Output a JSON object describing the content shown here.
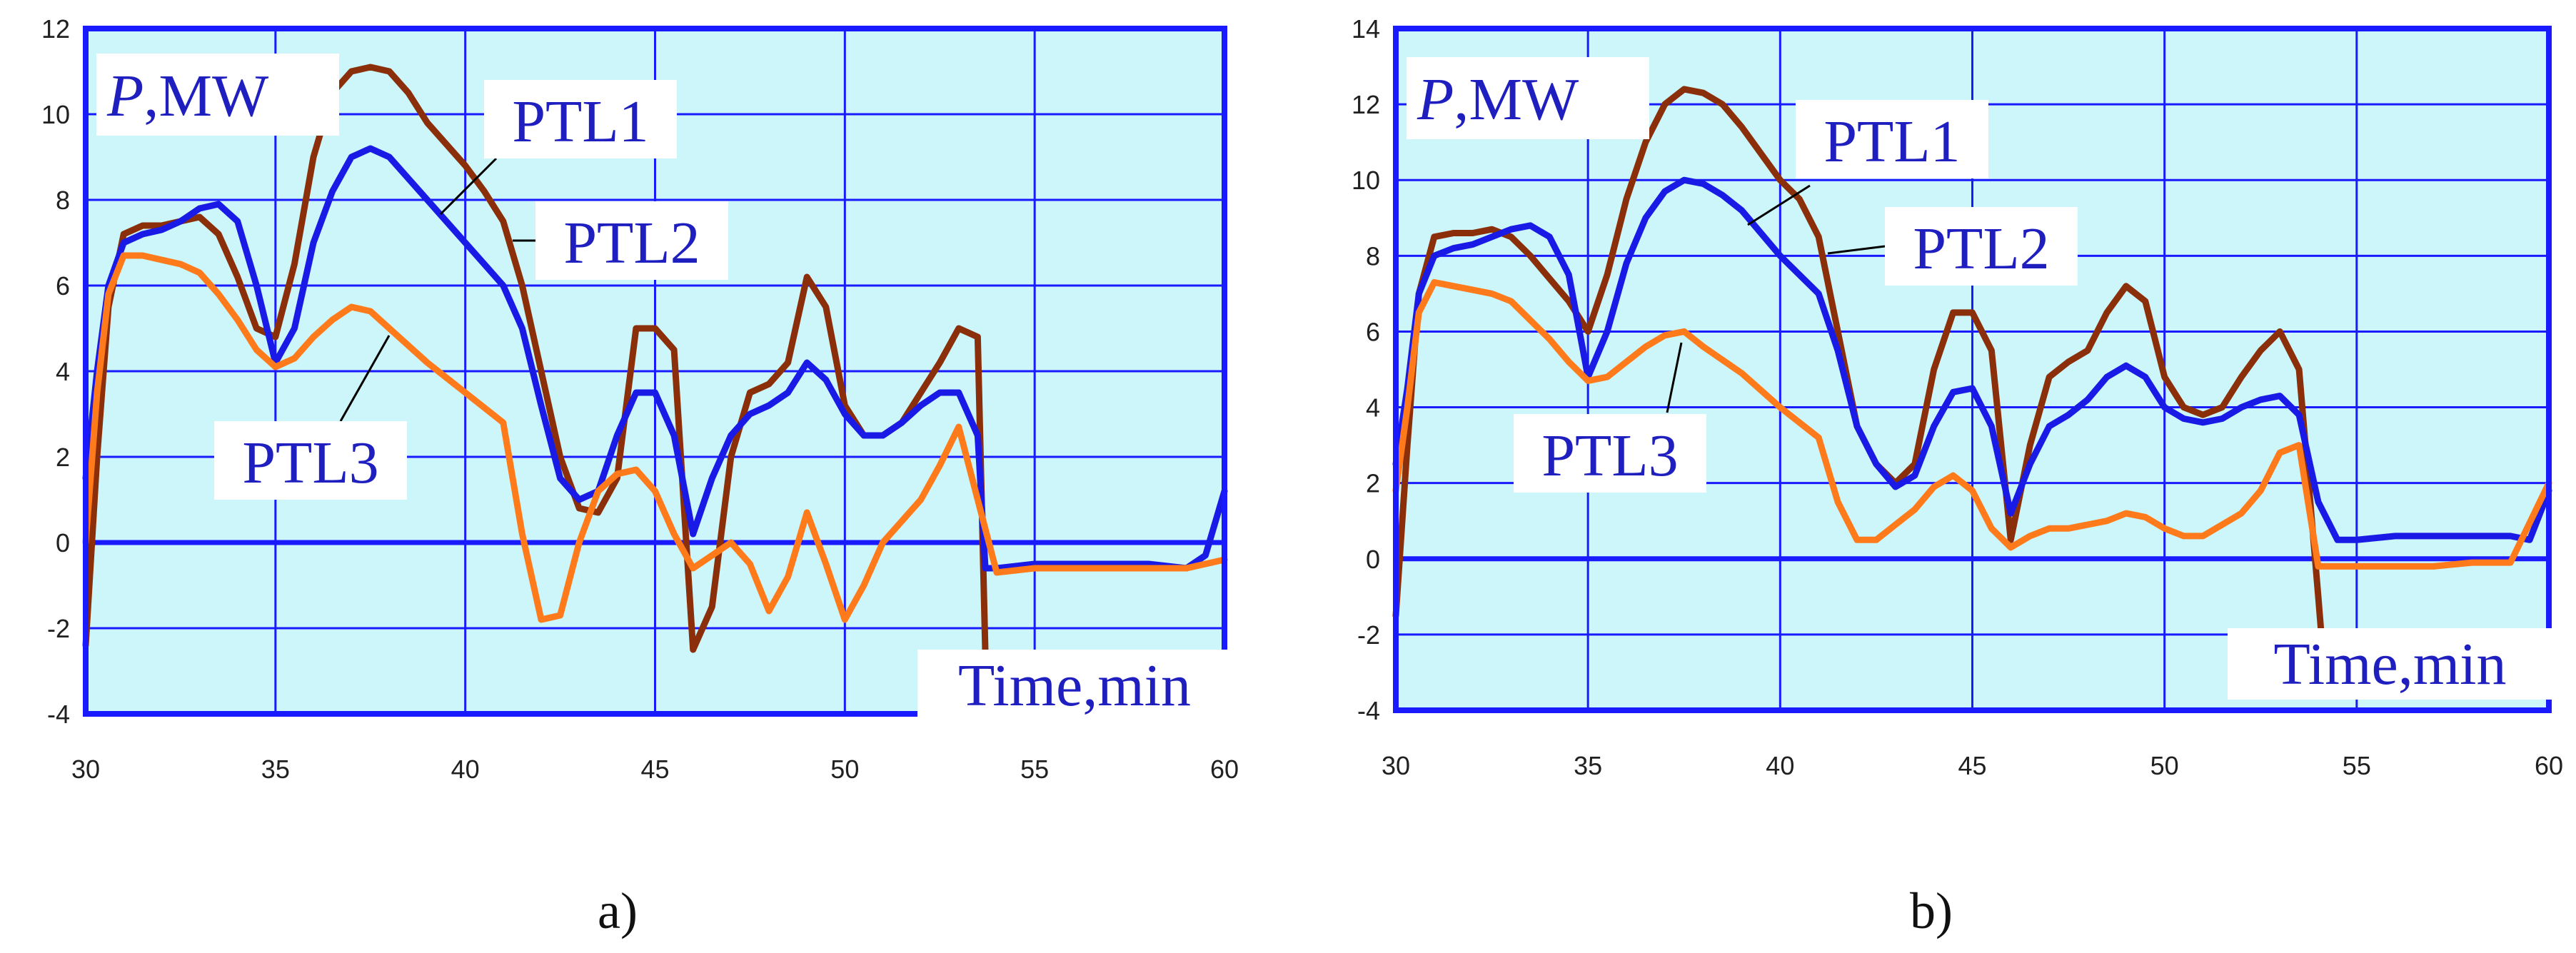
{
  "colors": {
    "plot_background": "#ccf6fa",
    "frame": "#1a1aff",
    "grid": "#1a1aff",
    "label_box": "#ffffff",
    "label_text": "#1f1fbf",
    "PTL1": "#8b2f0a",
    "PTL2": "#1a1ae6",
    "PTL3": "#ff7a1a"
  },
  "chart_data": [
    {
      "type": "line",
      "caption": "a)",
      "xlabel": "Time,min",
      "ylabel_symbol": "P",
      "ylabel_unit": ",MW",
      "xlim": [
        30,
        60
      ],
      "ylim": [
        -4,
        12
      ],
      "xticks": [
        30,
        35,
        40,
        45,
        50,
        55,
        60
      ],
      "yticks": [
        -4,
        -2,
        0,
        2,
        4,
        6,
        8,
        10,
        12
      ],
      "grid": true,
      "series": [
        {
          "name": "PTL1",
          "color": "#8b2f0a",
          "x": [
            30,
            30.3,
            30.6,
            31,
            31.5,
            32,
            33,
            33.5,
            34,
            34.5,
            35,
            35.5,
            36,
            36.5,
            37,
            37.5,
            38,
            38.5,
            39,
            40,
            40.5,
            41,
            41.5,
            42,
            42.5,
            43,
            43.5,
            44,
            44.5,
            45,
            45.5,
            46,
            46.5,
            47,
            47.5,
            48,
            48.5,
            49,
            49.5,
            50,
            50.5,
            51,
            51.5,
            52,
            52.5,
            53,
            53.5,
            53.7
          ],
          "y": [
            -2.4,
            2,
            5.5,
            7.2,
            7.4,
            7.4,
            7.6,
            7.2,
            6.2,
            5,
            4.8,
            6.5,
            9,
            10.5,
            11,
            11.1,
            11,
            10.5,
            9.8,
            8.8,
            8.2,
            7.5,
            6,
            4,
            2,
            0.8,
            0.7,
            1.5,
            5,
            5,
            4.5,
            -2.5,
            -1.5,
            2,
            3.5,
            3.7,
            4.2,
            6.2,
            5.5,
            3.2,
            2.5,
            2.5,
            2.8,
            3.5,
            4.2,
            5,
            4.8,
            -2.6
          ]
        },
        {
          "name": "PTL2",
          "color": "#1a1ae6",
          "x": [
            30,
            30.3,
            30.6,
            31,
            31.5,
            32,
            32.5,
            33,
            33.5,
            34,
            34.5,
            35,
            35.5,
            36,
            36.5,
            37,
            37.5,
            38,
            38.5,
            39,
            40,
            40.5,
            41,
            41.5,
            42,
            42.5,
            43,
            43.5,
            44,
            44.5,
            45,
            45.5,
            46,
            46.5,
            47,
            47.5,
            48,
            48.5,
            49,
            49.5,
            50,
            50.5,
            51,
            51.5,
            52,
            52.5,
            53,
            53.5,
            53.7,
            54,
            55,
            56,
            57,
            58,
            59,
            59.5,
            60
          ],
          "y": [
            1.5,
            4,
            6,
            7,
            7.2,
            7.3,
            7.5,
            7.8,
            7.9,
            7.5,
            6,
            4.2,
            5,
            7,
            8.2,
            9,
            9.2,
            9,
            8.5,
            8,
            7,
            6.5,
            6,
            5,
            3.2,
            1.5,
            1,
            1.2,
            2.5,
            3.5,
            3.5,
            2.5,
            0.2,
            1.5,
            2.5,
            3,
            3.2,
            3.5,
            4.2,
            3.8,
            3,
            2.5,
            2.5,
            2.8,
            3.2,
            3.5,
            3.5,
            2.5,
            -0.6,
            -0.6,
            -0.5,
            -0.5,
            -0.5,
            -0.5,
            -0.6,
            -0.3,
            1.2
          ]
        },
        {
          "name": "PTL3",
          "color": "#ff7a1a",
          "x": [
            30,
            30.3,
            30.6,
            31,
            31.5,
            32,
            32.5,
            33,
            33.5,
            34,
            34.5,
            35,
            35.5,
            36,
            36.5,
            37,
            37.5,
            38,
            39,
            40,
            41,
            41.5,
            42,
            42.5,
            43,
            43.5,
            44,
            44.5,
            45,
            45.5,
            46,
            46.5,
            47,
            47.5,
            48,
            48.5,
            49,
            49.5,
            50,
            50.5,
            51,
            51.5,
            52,
            52.5,
            53,
            53.5,
            54,
            55,
            56,
            57,
            58,
            59,
            60
          ],
          "y": [
            0,
            3.5,
            5.8,
            6.7,
            6.7,
            6.6,
            6.5,
            6.3,
            5.8,
            5.2,
            4.5,
            4.1,
            4.3,
            4.8,
            5.2,
            5.5,
            5.4,
            5,
            4.2,
            3.5,
            2.8,
            0.2,
            -1.8,
            -1.7,
            0,
            1.2,
            1.6,
            1.7,
            1.2,
            0.2,
            -0.6,
            -0.3,
            0,
            -0.5,
            -1.6,
            -0.8,
            0.7,
            -0.5,
            -1.8,
            -1,
            0,
            0.5,
            1,
            1.8,
            2.7,
            1,
            -0.7,
            -0.6,
            -0.6,
            -0.6,
            -0.6,
            -0.6,
            -0.4
          ]
        }
      ],
      "annotations": [
        {
          "text": "PTL1",
          "series": "PTL1"
        },
        {
          "text": "PTL2",
          "series": "PTL2"
        },
        {
          "text": "PTL3",
          "series": "PTL3"
        }
      ]
    },
    {
      "type": "line",
      "caption": "b)",
      "xlabel": "Time,min",
      "ylabel_symbol": "P",
      "ylabel_unit": ",MW",
      "xlim": [
        30,
        60
      ],
      "ylim": [
        -4,
        14
      ],
      "xticks": [
        30,
        35,
        40,
        45,
        50,
        55,
        60
      ],
      "yticks": [
        -4,
        -2,
        0,
        2,
        4,
        6,
        8,
        10,
        12,
        14
      ],
      "grid": true,
      "series": [
        {
          "name": "PTL1",
          "color": "#8b2f0a",
          "x": [
            30,
            30.3,
            30.6,
            31,
            31.5,
            32,
            32.5,
            33,
            33.5,
            34,
            34.5,
            35,
            35.5,
            36,
            36.5,
            37,
            37.5,
            38,
            38.5,
            39,
            40,
            40.5,
            41,
            41.5,
            42,
            42.5,
            43,
            43.5,
            44,
            44.5,
            45,
            45.5,
            46,
            46.5,
            47,
            47.5,
            48,
            48.5,
            49,
            49.5,
            50,
            50.5,
            51,
            51.5,
            52,
            52.5,
            53,
            53.5,
            54,
            54.2
          ],
          "y": [
            -1.5,
            3,
            7,
            8.5,
            8.6,
            8.6,
            8.7,
            8.5,
            8,
            7.4,
            6.8,
            6,
            7.5,
            9.5,
            11,
            12,
            12.4,
            12.3,
            12,
            11.4,
            10,
            9.5,
            8.5,
            6,
            3.5,
            2.5,
            2,
            2.5,
            5,
            6.5,
            6.5,
            5.5,
            0.5,
            3,
            4.8,
            5.2,
            5.5,
            6.5,
            7.2,
            6.8,
            4.8,
            4,
            3.8,
            4,
            4.8,
            5.5,
            6,
            5,
            -1,
            -3.5
          ]
        },
        {
          "name": "PTL2",
          "color": "#1a1ae6",
          "x": [
            30,
            30.3,
            30.6,
            31,
            31.5,
            32,
            32.5,
            33,
            33.5,
            34,
            34.5,
            35,
            35.5,
            36,
            36.5,
            37,
            37.5,
            38,
            38.5,
            39,
            40,
            40.5,
            41,
            41.5,
            42,
            42.5,
            43,
            43.5,
            44,
            44.5,
            45,
            45.5,
            46,
            46.5,
            47,
            47.5,
            48,
            48.5,
            49,
            49.5,
            50,
            50.5,
            51,
            51.5,
            52,
            52.5,
            53,
            53.5,
            54,
            54.5,
            55,
            56,
            57,
            58,
            59,
            59.5,
            60
          ],
          "y": [
            2.5,
            4.5,
            7,
            8,
            8.2,
            8.3,
            8.5,
            8.7,
            8.8,
            8.5,
            7.5,
            4.8,
            6,
            7.8,
            9,
            9.7,
            10,
            9.9,
            9.6,
            9.2,
            8,
            7.5,
            7,
            5.5,
            3.5,
            2.5,
            1.9,
            2.2,
            3.5,
            4.4,
            4.5,
            3.5,
            1.2,
            2.5,
            3.5,
            3.8,
            4.2,
            4.8,
            5.1,
            4.8,
            4,
            3.7,
            3.6,
            3.7,
            4,
            4.2,
            4.3,
            3.8,
            1.5,
            0.5,
            0.5,
            0.6,
            0.6,
            0.6,
            0.6,
            0.5,
            1.8
          ]
        },
        {
          "name": "PTL3",
          "color": "#ff7a1a",
          "x": [
            30,
            30.3,
            30.6,
            31,
            31.5,
            32,
            32.5,
            33,
            33.5,
            34,
            34.5,
            35,
            35.5,
            36,
            36.5,
            37,
            37.5,
            38,
            39,
            40,
            41,
            41.5,
            42,
            42.5,
            43,
            43.5,
            44,
            44.5,
            45,
            45.5,
            46,
            46.5,
            47,
            47.5,
            48,
            48.5,
            49,
            49.5,
            50,
            50.5,
            51,
            51.5,
            52,
            52.5,
            53,
            53.5,
            54,
            55,
            56,
            57,
            58,
            59,
            60
          ],
          "y": [
            1.8,
            4,
            6.5,
            7.3,
            7.2,
            7.1,
            7,
            6.8,
            6.3,
            5.8,
            5.2,
            4.7,
            4.8,
            5.2,
            5.6,
            5.9,
            6,
            5.6,
            4.9,
            4,
            3.2,
            1.5,
            0.5,
            0.5,
            0.9,
            1.3,
            1.9,
            2.2,
            1.8,
            0.8,
            0.3,
            0.6,
            0.8,
            0.8,
            0.9,
            1,
            1.2,
            1.1,
            0.8,
            0.6,
            0.6,
            0.9,
            1.2,
            1.8,
            2.8,
            3,
            -0.2,
            -0.2,
            -0.2,
            -0.2,
            -0.1,
            -0.1,
            2
          ]
        }
      ],
      "annotations": [
        {
          "text": "PTL1",
          "series": "PTL1"
        },
        {
          "text": "PTL2",
          "series": "PTL2"
        },
        {
          "text": "PTL3",
          "series": "PTL3"
        }
      ]
    }
  ]
}
